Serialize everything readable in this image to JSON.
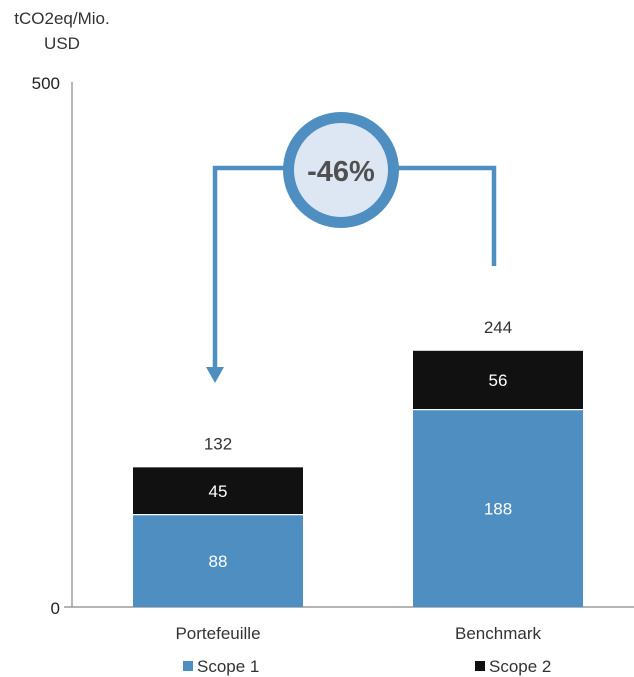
{
  "chart_data": {
    "type": "bar",
    "stacked": true,
    "ylabel_line1": "tCO2eq/Mio.",
    "ylabel_line2": "USD",
    "ylim": [
      0,
      500
    ],
    "yticks": [
      0,
      500
    ],
    "categories": [
      "Portefeuille",
      "Benchmark"
    ],
    "series": [
      {
        "name": "Scope 1",
        "values": [
          88,
          188
        ],
        "color": "#4f8ec0"
      },
      {
        "name": "Scope 2",
        "values": [
          45,
          56
        ],
        "color": "#111111"
      }
    ],
    "totals": [
      132,
      244
    ],
    "annotation": "-46%",
    "grid": false,
    "legend_position": "bottom"
  },
  "colors": {
    "accent": "#4f8ec0",
    "badge_fill": "#dce7f3",
    "axis": "#888888"
  }
}
